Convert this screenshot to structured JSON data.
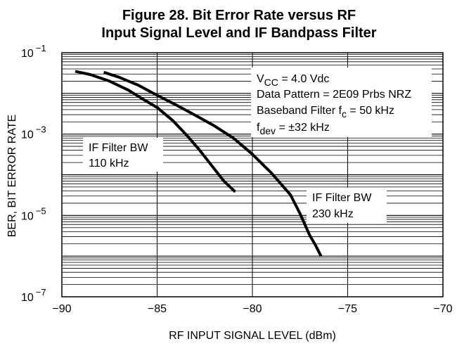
{
  "chart_data": {
    "type": "line",
    "title_line1": "Figure 28. Bit Error Rate versus RF",
    "title_line2": "Input Signal Level and IF Bandpass Filter",
    "xlabel": "RF INPUT SIGNAL LEVEL (dBm)",
    "ylabel": "BER, BIT ERROR RATE",
    "xlim": [
      -90,
      -70
    ],
    "ylim": [
      1e-07,
      0.1
    ],
    "yscale": "log",
    "grid": true,
    "x_ticks": [
      {
        "value": -90,
        "label": "−90"
      },
      {
        "value": -85,
        "label": "−85"
      },
      {
        "value": -80,
        "label": "−80"
      },
      {
        "value": -75,
        "label": "−75"
      },
      {
        "value": -70,
        "label": "−70"
      }
    ],
    "y_ticks": [
      {
        "value": 0.1,
        "base": "10",
        "exp": "−1"
      },
      {
        "value": 0.001,
        "base": "10",
        "exp": "−3"
      },
      {
        "value": 1e-05,
        "base": "10",
        "exp": "−5"
      },
      {
        "value": 1e-07,
        "base": "10",
        "exp": "−7"
      }
    ],
    "conditions": [
      {
        "main": "V",
        "sub": "CC",
        "rest": " = 4.0 Vdc"
      },
      {
        "main": "Data Pattern = 2E09 Prbs NRZ",
        "sub": "",
        "rest": ""
      },
      {
        "main": "Baseband Filter f",
        "sub": "c",
        "rest": " = 50 kHz"
      },
      {
        "main": "f",
        "sub": "dev",
        "rest": " = ±32 kHz"
      }
    ],
    "series": [
      {
        "labels": [
          "IF Filter BW",
          "110 kHz"
        ],
        "x": [
          -89.3,
          -88.5,
          -87.5,
          -86.5,
          -85.8,
          -85.0,
          -84.2,
          -83.5,
          -82.8,
          -82.1,
          -81.5,
          -80.9
        ],
        "y": [
          0.035,
          0.029,
          0.02,
          0.012,
          0.0075,
          0.0045,
          0.0022,
          0.001,
          0.00042,
          0.00016,
          7e-05,
          3.8e-05
        ]
      },
      {
        "labels": [
          "IF Filter BW",
          "230 kHz"
        ],
        "x": [
          -87.8,
          -87.0,
          -86.0,
          -85.0,
          -84.0,
          -83.0,
          -82.0,
          -81.0,
          -80.0,
          -79.0,
          -78.0,
          -77.5,
          -77.0,
          -76.7,
          -76.4
        ],
        "y": [
          0.033,
          0.025,
          0.016,
          0.009,
          0.0052,
          0.0029,
          0.0016,
          0.0008,
          0.00032,
          0.00011,
          3.2e-05,
          1.1e-05,
          3.3e-06,
          1.9e-06,
          1e-06
        ]
      }
    ]
  }
}
